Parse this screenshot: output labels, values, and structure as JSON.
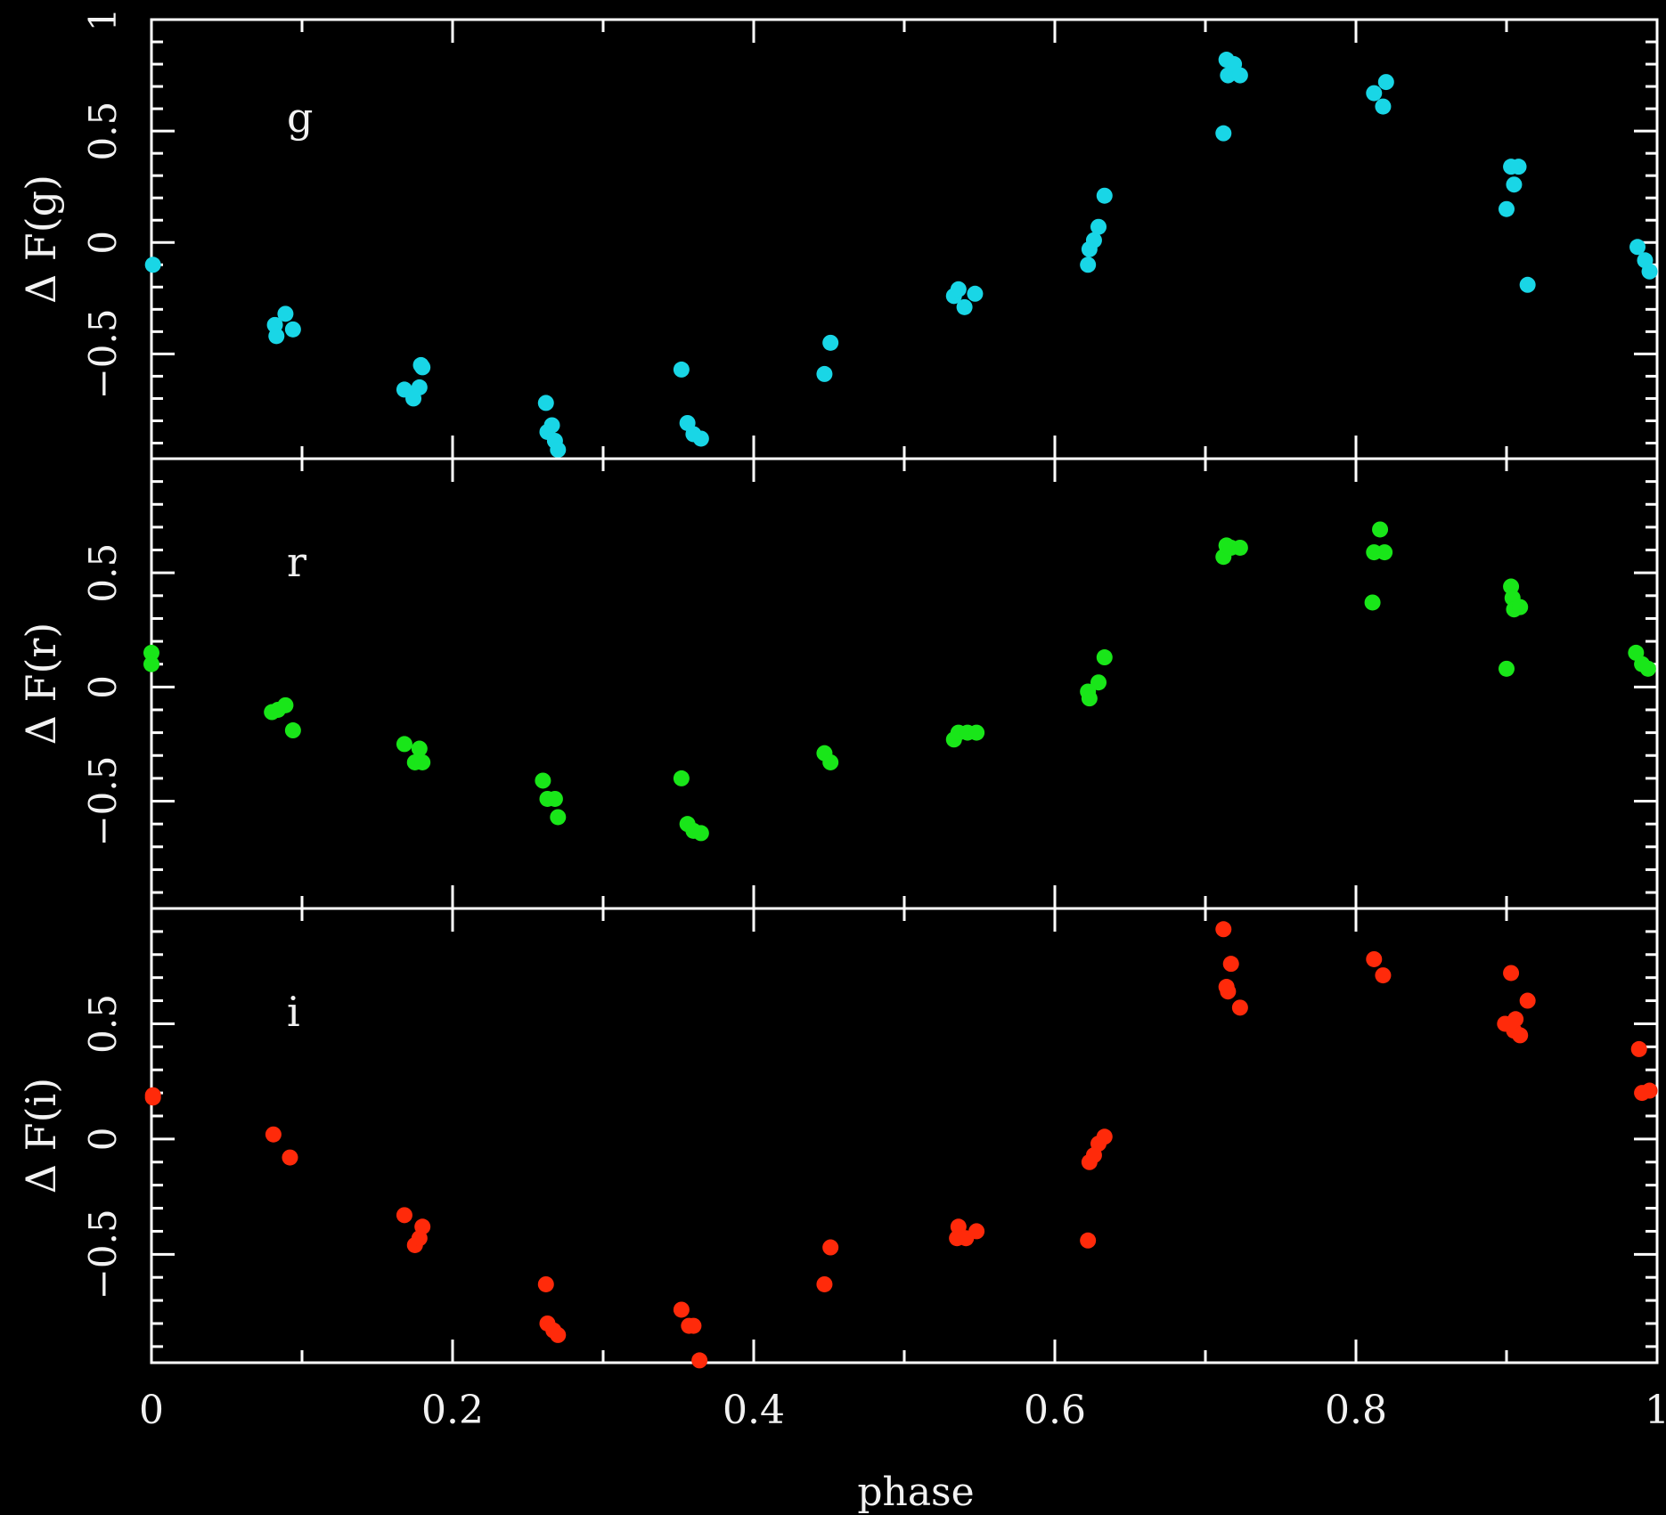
{
  "chart_data": {
    "type": "scatter",
    "layout": "three vertically stacked panels sharing the x axis",
    "xlabel": "phase",
    "xlim": [
      0,
      1
    ],
    "x_ticks": [
      "0",
      "0.2",
      "0.4",
      "0.6",
      "0.8",
      "1"
    ],
    "grid": false,
    "background": "#000000",
    "axis_color": "#ffffff",
    "panels": [
      {
        "name": "g",
        "label": "g",
        "ylabel": "Δ F(g)",
        "ylim": [
          -0.97,
          1.0
        ],
        "y_ticks": [
          "1",
          "0.5",
          "0",
          "−0.5"
        ],
        "y_tick_values": [
          1,
          0.5,
          0,
          -0.5
        ],
        "color": "#19d6e6",
        "points": [
          [
            0.001,
            -0.1
          ],
          [
            0.082,
            -0.37
          ],
          [
            0.083,
            -0.42
          ],
          [
            0.089,
            -0.32
          ],
          [
            0.094,
            -0.39
          ],
          [
            0.168,
            -0.66
          ],
          [
            0.174,
            -0.7
          ],
          [
            0.178,
            -0.65
          ],
          [
            0.179,
            -0.55
          ],
          [
            0.18,
            -0.56
          ],
          [
            0.262,
            -0.72
          ],
          [
            0.263,
            -0.85
          ],
          [
            0.266,
            -0.82
          ],
          [
            0.268,
            -0.89
          ],
          [
            0.27,
            -0.93
          ],
          [
            0.352,
            -0.57
          ],
          [
            0.356,
            -0.81
          ],
          [
            0.36,
            -0.86
          ],
          [
            0.365,
            -0.88
          ],
          [
            0.447,
            -0.59
          ],
          [
            0.451,
            -0.45
          ],
          [
            0.533,
            -0.24
          ],
          [
            0.536,
            -0.21
          ],
          [
            0.54,
            -0.29
          ],
          [
            0.547,
            -0.23
          ],
          [
            0.622,
            -0.1
          ],
          [
            0.623,
            -0.03
          ],
          [
            0.626,
            0.01
          ],
          [
            0.629,
            0.07
          ],
          [
            0.633,
            0.21
          ],
          [
            0.712,
            0.49
          ],
          [
            0.714,
            0.82
          ],
          [
            0.715,
            0.75
          ],
          [
            0.719,
            0.8
          ],
          [
            0.723,
            0.75
          ],
          [
            0.812,
            0.67
          ],
          [
            0.818,
            0.61
          ],
          [
            0.82,
            0.72
          ],
          [
            0.9,
            0.15
          ],
          [
            0.903,
            0.34
          ],
          [
            0.905,
            0.26
          ],
          [
            0.908,
            0.34
          ],
          [
            0.914,
            -0.19
          ],
          [
            0.987,
            -0.02
          ],
          [
            0.992,
            -0.08
          ],
          [
            0.995,
            -0.13
          ]
        ]
      },
      {
        "name": "r",
        "label": "r",
        "ylabel": "Δ F(r)",
        "ylim": [
          -0.97,
          1.0
        ],
        "y_ticks": [
          "0.5",
          "0",
          "−0.5"
        ],
        "y_tick_values": [
          0.5,
          0,
          -0.5
        ],
        "color": "#19e619",
        "points": [
          [
            0.0,
            0.15
          ],
          [
            0.0,
            0.1
          ],
          [
            0.08,
            -0.11
          ],
          [
            0.084,
            -0.1
          ],
          [
            0.089,
            -0.08
          ],
          [
            0.094,
            -0.19
          ],
          [
            0.168,
            -0.25
          ],
          [
            0.175,
            -0.33
          ],
          [
            0.178,
            -0.27
          ],
          [
            0.18,
            -0.33
          ],
          [
            0.26,
            -0.41
          ],
          [
            0.263,
            -0.49
          ],
          [
            0.268,
            -0.49
          ],
          [
            0.27,
            -0.57
          ],
          [
            0.352,
            -0.4
          ],
          [
            0.356,
            -0.6
          ],
          [
            0.36,
            -0.63
          ],
          [
            0.365,
            -0.64
          ],
          [
            0.447,
            -0.29
          ],
          [
            0.451,
            -0.33
          ],
          [
            0.533,
            -0.23
          ],
          [
            0.536,
            -0.2
          ],
          [
            0.542,
            -0.2
          ],
          [
            0.548,
            -0.2
          ],
          [
            0.622,
            -0.02
          ],
          [
            0.623,
            -0.05
          ],
          [
            0.629,
            0.02
          ],
          [
            0.633,
            0.13
          ],
          [
            0.712,
            0.57
          ],
          [
            0.714,
            0.62
          ],
          [
            0.717,
            0.61
          ],
          [
            0.723,
            0.61
          ],
          [
            0.811,
            0.37
          ],
          [
            0.812,
            0.59
          ],
          [
            0.816,
            0.69
          ],
          [
            0.819,
            0.59
          ],
          [
            0.9,
            0.08
          ],
          [
            0.903,
            0.44
          ],
          [
            0.904,
            0.39
          ],
          [
            0.905,
            0.34
          ],
          [
            0.909,
            0.35
          ],
          [
            0.986,
            0.15
          ],
          [
            0.99,
            0.1
          ],
          [
            0.994,
            0.08
          ]
        ]
      },
      {
        "name": "i",
        "label": "i",
        "ylabel": "Δ F(i)",
        "ylim": [
          -0.97,
          1.0
        ],
        "y_ticks": [
          "0.5",
          "0",
          "−0.5"
        ],
        "y_tick_values": [
          0.5,
          0,
          -0.5
        ],
        "color": "#ff2a0a",
        "points": [
          [
            0.001,
            0.19
          ],
          [
            0.001,
            0.18
          ],
          [
            0.081,
            0.02
          ],
          [
            0.092,
            -0.08
          ],
          [
            0.168,
            -0.33
          ],
          [
            0.175,
            -0.46
          ],
          [
            0.178,
            -0.43
          ],
          [
            0.18,
            -0.38
          ],
          [
            0.262,
            -0.63
          ],
          [
            0.263,
            -0.8
          ],
          [
            0.267,
            -0.83
          ],
          [
            0.27,
            -0.85
          ],
          [
            0.352,
            -0.74
          ],
          [
            0.357,
            -0.81
          ],
          [
            0.36,
            -0.81
          ],
          [
            0.364,
            -0.96
          ],
          [
            0.447,
            -0.63
          ],
          [
            0.451,
            -0.47
          ],
          [
            0.535,
            -0.43
          ],
          [
            0.536,
            -0.38
          ],
          [
            0.541,
            -0.43
          ],
          [
            0.548,
            -0.4
          ],
          [
            0.622,
            -0.44
          ],
          [
            0.623,
            -0.1
          ],
          [
            0.626,
            -0.07
          ],
          [
            0.629,
            -0.02
          ],
          [
            0.633,
            0.01
          ],
          [
            0.712,
            0.91
          ],
          [
            0.714,
            0.66
          ],
          [
            0.715,
            0.64
          ],
          [
            0.717,
            0.76
          ],
          [
            0.723,
            0.57
          ],
          [
            0.812,
            0.78
          ],
          [
            0.818,
            0.71
          ],
          [
            0.899,
            0.5
          ],
          [
            0.903,
            0.72
          ],
          [
            0.905,
            0.47
          ],
          [
            0.906,
            0.52
          ],
          [
            0.909,
            0.45
          ],
          [
            0.914,
            0.6
          ],
          [
            0.988,
            0.39
          ],
          [
            0.99,
            0.2
          ],
          [
            0.995,
            0.21
          ]
        ]
      }
    ]
  }
}
